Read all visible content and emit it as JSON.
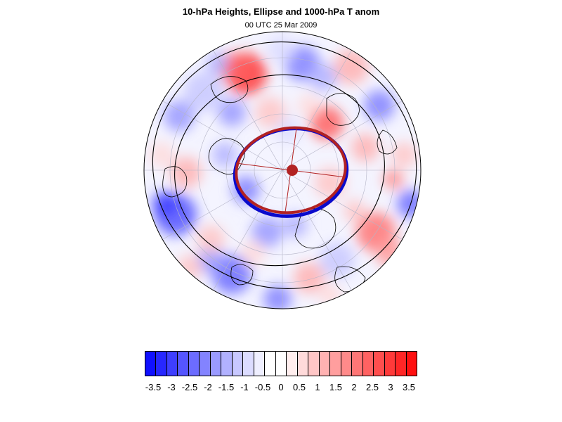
{
  "header": {
    "title": "10-hPa Heights, Ellipse and 1000-hPa T anom",
    "subtitle": "00 UTC 25 Mar 2009"
  },
  "colors": {
    "ellipse_red": "#b22222",
    "ellipse_blue": "#0a0acc",
    "contour": "#000000",
    "land_outline": "#000000",
    "anomaly_scale": "blue-white-red"
  },
  "colorbar": {
    "labels": [
      "-3.5",
      "-3",
      "-2.5",
      "-2",
      "-1.5",
      "-1",
      "-0.5",
      "0",
      "0.5",
      "1",
      "1.5",
      "2",
      "2.5",
      "3",
      "3.5"
    ],
    "swatches": [
      "#1010ff",
      "#2727ff",
      "#3e3eff",
      "#5555ff",
      "#6c6cff",
      "#8383ff",
      "#9a9aff",
      "#b1b1ff",
      "#c8c8ff",
      "#dcdcff",
      "#efefff",
      "#ffffff",
      "#ffffff",
      "#ffeeee",
      "#ffdada",
      "#ffc6c6",
      "#ffb2b2",
      "#ff9e9e",
      "#ff8a8a",
      "#ff7676",
      "#ff6262",
      "#ff4e4e",
      "#ff3a3a",
      "#ff2626",
      "#ff1010"
    ]
  }
}
